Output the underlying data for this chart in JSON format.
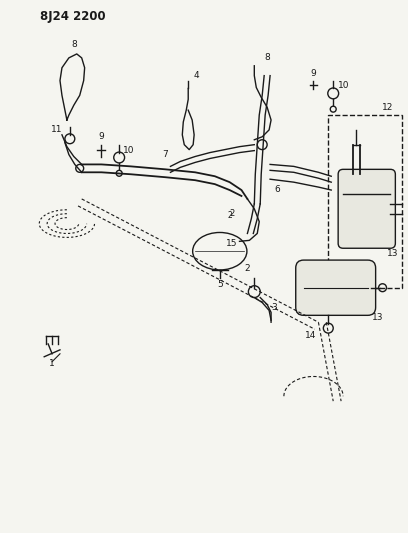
{
  "title": "8J24 2200",
  "bg_color": "#f5f5f0",
  "line_color": "#1a1a1a",
  "figsize": [
    4.08,
    5.33
  ],
  "dpi": 100
}
